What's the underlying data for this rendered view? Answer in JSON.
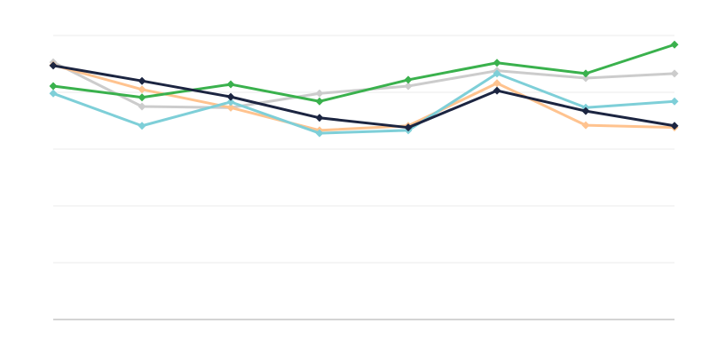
{
  "chart_data": {
    "type": "line",
    "title": "",
    "xlabel": "",
    "ylabel": "",
    "x": [
      1,
      2,
      3,
      4,
      5,
      6,
      7,
      8
    ],
    "ylim": [
      0,
      5
    ],
    "yticks": [
      0,
      1,
      2,
      3,
      4,
      5
    ],
    "grid": true,
    "legend": "none",
    "marker": "diamond",
    "series": [
      {
        "color": "#cccccc",
        "values": [
          4.53,
          3.75,
          3.73,
          3.98,
          4.11,
          4.38,
          4.25,
          4.33
        ]
      },
      {
        "color": "#ffc38f",
        "values": [
          4.48,
          4.05,
          3.73,
          3.33,
          3.41,
          4.16,
          3.42,
          3.38
        ]
      },
      {
        "color": "#7ecfd8",
        "values": [
          3.98,
          3.41,
          3.83,
          3.28,
          3.33,
          4.33,
          3.73,
          3.84
        ]
      },
      {
        "color": "#3ab14d",
        "values": [
          4.11,
          3.91,
          4.14,
          3.84,
          4.22,
          4.52,
          4.33,
          4.84
        ]
      },
      {
        "color": "#1c2541",
        "values": [
          4.47,
          4.2,
          3.92,
          3.55,
          3.38,
          4.03,
          3.67,
          3.41
        ]
      }
    ]
  }
}
